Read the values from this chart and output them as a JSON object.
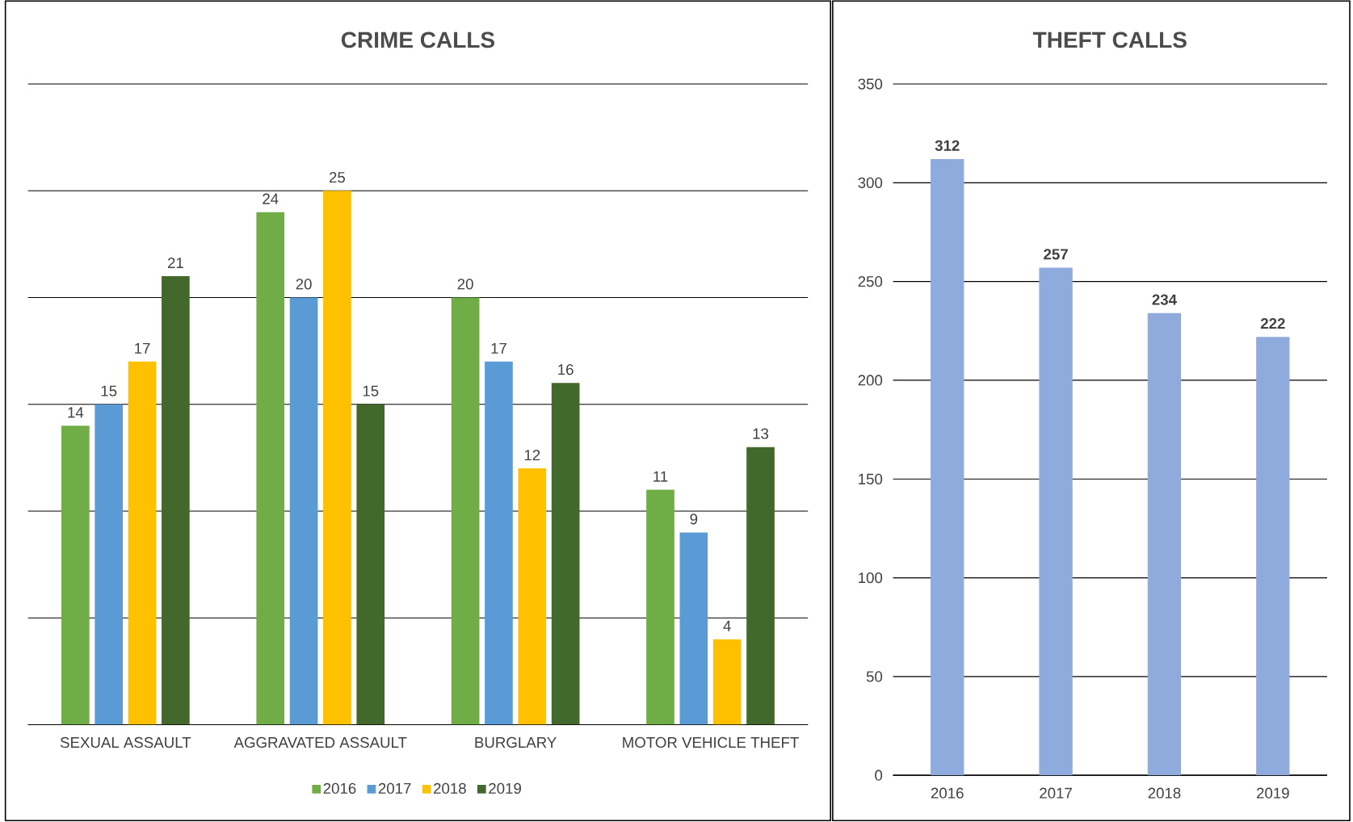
{
  "chart_data": [
    {
      "type": "bar",
      "title": "CRIME CALLS",
      "categories": [
        "SEXUAL ASSAULT",
        "AGGRAVATED ASSAULT",
        "BURGLARY",
        "MOTOR VEHICLE THEFT"
      ],
      "series": [
        {
          "name": "2016",
          "color": "#70ad47",
          "values": [
            14,
            24,
            20,
            11
          ]
        },
        {
          "name": "2017",
          "color": "#5b9bd5",
          "values": [
            15,
            20,
            17,
            9
          ]
        },
        {
          "name": "2018",
          "color": "#ffc000",
          "values": [
            17,
            25,
            12,
            4
          ]
        },
        {
          "name": "2019",
          "color": "#43682b",
          "values": [
            21,
            15,
            16,
            13
          ]
        }
      ],
      "ylim": [
        0,
        30
      ],
      "yticks": [
        {
          "value": 0,
          "label": null
        },
        {
          "value": 5,
          "label": null
        },
        {
          "value": 10,
          "label": null
        },
        {
          "value": 15,
          "label": null
        },
        {
          "value": 20,
          "label": null
        },
        {
          "value": 25,
          "label": null
        },
        {
          "value": 30,
          "label": null
        }
      ],
      "tick_labels": "x",
      "grid": "y",
      "legend": "bottom",
      "data_labels": true
    },
    {
      "type": "bar",
      "title": "THEFT CALLS",
      "categories": [
        "2016",
        "2017",
        "2018",
        "2019"
      ],
      "values": [
        312,
        257,
        234,
        222
      ],
      "color": "#8faadc",
      "ylim": [
        0,
        350
      ],
      "yticks": [
        0,
        50,
        100,
        150,
        200,
        250,
        300,
        350
      ],
      "grid": "y",
      "data_labels": true
    }
  ]
}
